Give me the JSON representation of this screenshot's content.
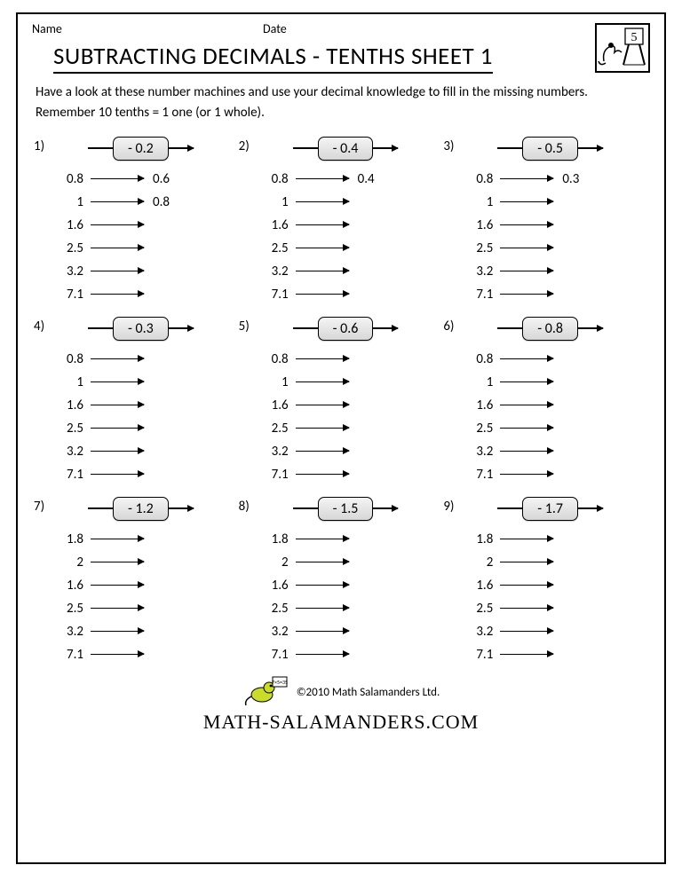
{
  "header": {
    "name_label": "Name",
    "date_label": "Date",
    "grade_badge": "5",
    "title": "SUBTRACTING DECIMALS - TENTHS SHEET 1"
  },
  "instructions": "Have a look at these number machines and use your decimal knowledge to fill in the missing numbers. Remember 10 tenths = 1 one (or 1 whole).",
  "colors": {
    "border": "#000000",
    "background": "#ffffff",
    "opbox_top": "#f4f4f4",
    "opbox_bottom": "#d7d7d7"
  },
  "problems": [
    {
      "num": "1)",
      "op": "- 0.2",
      "rows": [
        {
          "in": "0.8",
          "out": "0.6"
        },
        {
          "in": "1",
          "out": "0.8"
        },
        {
          "in": "1.6",
          "out": ""
        },
        {
          "in": "2.5",
          "out": ""
        },
        {
          "in": "3.2",
          "out": ""
        },
        {
          "in": "7.1",
          "out": ""
        }
      ]
    },
    {
      "num": "2)",
      "op": "- 0.4",
      "rows": [
        {
          "in": "0.8",
          "out": "0.4"
        },
        {
          "in": "1",
          "out": ""
        },
        {
          "in": "1.6",
          "out": ""
        },
        {
          "in": "2.5",
          "out": ""
        },
        {
          "in": "3.2",
          "out": ""
        },
        {
          "in": "7.1",
          "out": ""
        }
      ]
    },
    {
      "num": "3)",
      "op": "- 0.5",
      "rows": [
        {
          "in": "0.8",
          "out": "0.3"
        },
        {
          "in": "1",
          "out": ""
        },
        {
          "in": "1.6",
          "out": ""
        },
        {
          "in": "2.5",
          "out": ""
        },
        {
          "in": "3.2",
          "out": ""
        },
        {
          "in": "7.1",
          "out": ""
        }
      ]
    },
    {
      "num": "4)",
      "op": "- 0.3",
      "rows": [
        {
          "in": "0.8",
          "out": ""
        },
        {
          "in": "1",
          "out": ""
        },
        {
          "in": "1.6",
          "out": ""
        },
        {
          "in": "2.5",
          "out": ""
        },
        {
          "in": "3.2",
          "out": ""
        },
        {
          "in": "7.1",
          "out": ""
        }
      ]
    },
    {
      "num": "5)",
      "op": "- 0.6",
      "rows": [
        {
          "in": "0.8",
          "out": ""
        },
        {
          "in": "1",
          "out": ""
        },
        {
          "in": "1.6",
          "out": ""
        },
        {
          "in": "2.5",
          "out": ""
        },
        {
          "in": "3.2",
          "out": ""
        },
        {
          "in": "7.1",
          "out": ""
        }
      ]
    },
    {
      "num": "6)",
      "op": "- 0.8",
      "rows": [
        {
          "in": "0.8",
          "out": ""
        },
        {
          "in": "1",
          "out": ""
        },
        {
          "in": "1.6",
          "out": ""
        },
        {
          "in": "2.5",
          "out": ""
        },
        {
          "in": "3.2",
          "out": ""
        },
        {
          "in": "7.1",
          "out": ""
        }
      ]
    },
    {
      "num": "7)",
      "op": "- 1.2",
      "rows": [
        {
          "in": "1.8",
          "out": ""
        },
        {
          "in": "2",
          "out": ""
        },
        {
          "in": "1.6",
          "out": ""
        },
        {
          "in": "2.5",
          "out": ""
        },
        {
          "in": "3.2",
          "out": ""
        },
        {
          "in": "7.1",
          "out": ""
        }
      ]
    },
    {
      "num": "8)",
      "op": "- 1.5",
      "rows": [
        {
          "in": "1.8",
          "out": ""
        },
        {
          "in": "2",
          "out": ""
        },
        {
          "in": "1.6",
          "out": ""
        },
        {
          "in": "2.5",
          "out": ""
        },
        {
          "in": "3.2",
          "out": ""
        },
        {
          "in": "7.1",
          "out": ""
        }
      ]
    },
    {
      "num": "9)",
      "op": "- 1.7",
      "rows": [
        {
          "in": "1.8",
          "out": ""
        },
        {
          "in": "2",
          "out": ""
        },
        {
          "in": "1.6",
          "out": ""
        },
        {
          "in": "2.5",
          "out": ""
        },
        {
          "in": "3.2",
          "out": ""
        },
        {
          "in": "7.1",
          "out": ""
        }
      ]
    }
  ],
  "footer": {
    "copyright": "©2010 Math Salamanders Ltd.",
    "site": "MATH-SALAMANDERS.COM"
  }
}
